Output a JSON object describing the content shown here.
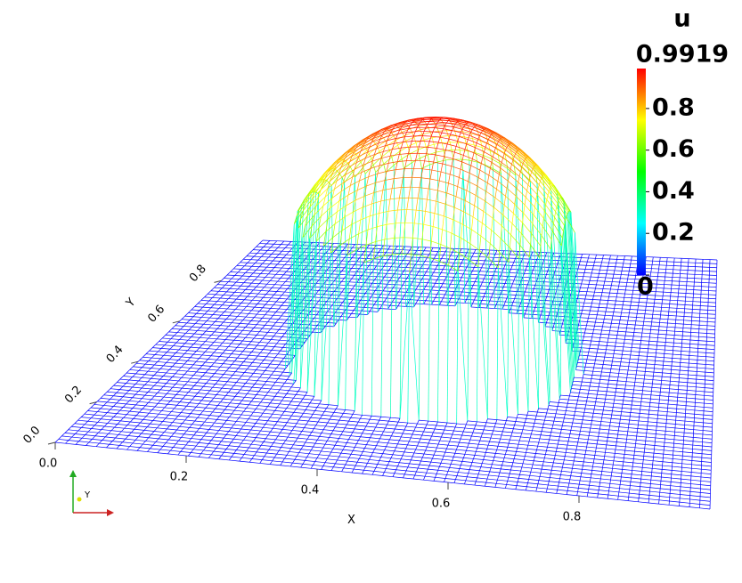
{
  "chart_data": {
    "type": "surface",
    "x_label": "X",
    "y_label": "Y",
    "xlim": [
      0,
      1
    ],
    "ylim": [
      0,
      1
    ],
    "xticks": [
      {
        "value": 0,
        "label": "0.0"
      },
      0.2,
      0.4,
      0.6,
      0.8
    ],
    "yticks": [
      {
        "value": 0,
        "label": "0.0"
      },
      0.2,
      0.4,
      0.6,
      0.8
    ],
    "colorbar": {
      "title": "u",
      "lim": [
        0,
        0.9919
      ],
      "ticks": [
        0,
        0.2,
        0.4,
        0.6,
        0.8
      ]
    },
    "orientation_axes": {
      "y_label": "Y"
    }
  }
}
